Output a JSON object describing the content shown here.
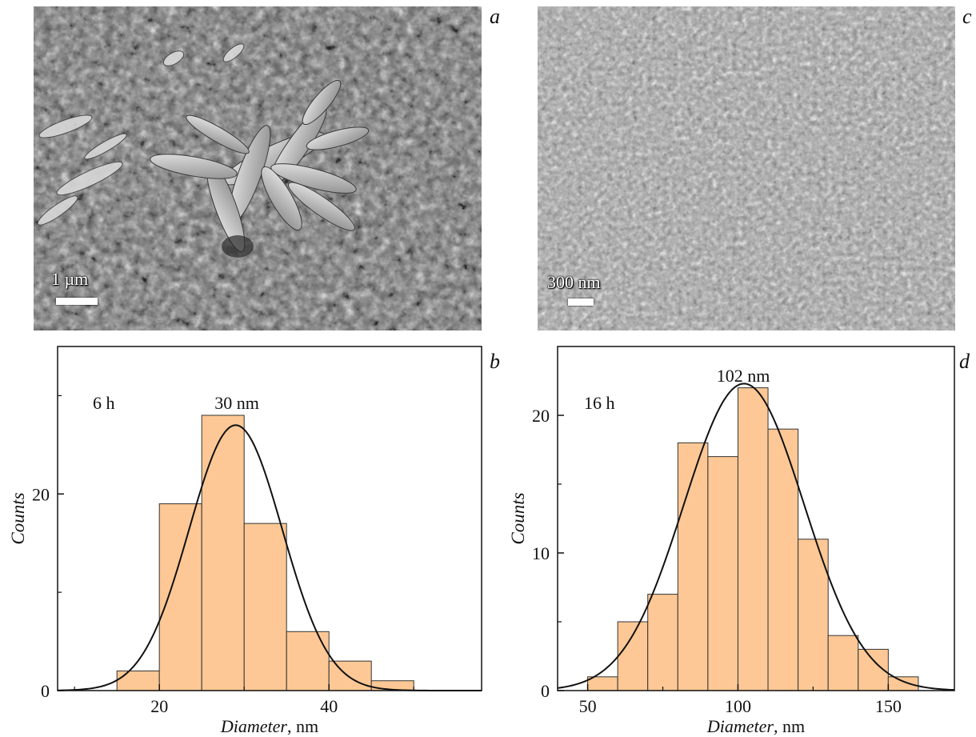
{
  "panels": {
    "a": {
      "letter": "a",
      "scalebar": "1 µm"
    },
    "b": {
      "letter": "b"
    },
    "c": {
      "letter": "c",
      "scalebar": "300 nm"
    },
    "d": {
      "letter": "d"
    }
  },
  "colors": {
    "bar_fill": "#fdc895",
    "bar_stroke": "#333333",
    "curve": "#111111",
    "axis": "#111111"
  },
  "chart_data": [
    {
      "type": "bar",
      "panel": "b",
      "xlabel_italic": "Diameter",
      "xlabel_unit": ", nm",
      "ylabel": "Counts",
      "xlim": [
        8,
        58
      ],
      "ylim": [
        0,
        35
      ],
      "xticks": [
        20,
        40
      ],
      "xminor": [
        10,
        30,
        50
      ],
      "yticks": [
        0,
        20
      ],
      "yminor": [
        10,
        30
      ],
      "bin_width": 5,
      "bins": [
        {
          "x": 15,
          "count": 2
        },
        {
          "x": 20,
          "count": 19
        },
        {
          "x": 25,
          "count": 28
        },
        {
          "x": 30,
          "count": 17
        },
        {
          "x": 35,
          "count": 6
        },
        {
          "x": 40,
          "count": 3
        },
        {
          "x": 45,
          "count": 1
        }
      ],
      "fit": {
        "type": "gaussian",
        "amplitude": 27,
        "center": 29,
        "sigma": 5.5
      },
      "annotations": {
        "time": "6 h",
        "peak": "30 nm"
      }
    },
    {
      "type": "bar",
      "panel": "d",
      "xlabel_italic": "Diameter",
      "xlabel_unit": ", nm",
      "ylabel": "Counts",
      "xlim": [
        40,
        172
      ],
      "ylim": [
        0,
        25
      ],
      "xticks": [
        50,
        100,
        150
      ],
      "xminor": [
        75,
        125
      ],
      "yticks": [
        0,
        10,
        20
      ],
      "yminor": [
        5,
        15
      ],
      "bin_width": 10,
      "bins": [
        {
          "x": 50,
          "count": 1
        },
        {
          "x": 60,
          "count": 5
        },
        {
          "x": 70,
          "count": 7
        },
        {
          "x": 80,
          "count": 18
        },
        {
          "x": 90,
          "count": 17
        },
        {
          "x": 100,
          "count": 22
        },
        {
          "x": 110,
          "count": 19
        },
        {
          "x": 120,
          "count": 11
        },
        {
          "x": 130,
          "count": 4
        },
        {
          "x": 140,
          "count": 3
        },
        {
          "x": 150,
          "count": 1
        }
      ],
      "fit": {
        "type": "gaussian",
        "amplitude": 22.3,
        "center": 102,
        "sigma": 20
      },
      "annotations": {
        "time": "16 h",
        "peak": "102 nm"
      }
    }
  ]
}
